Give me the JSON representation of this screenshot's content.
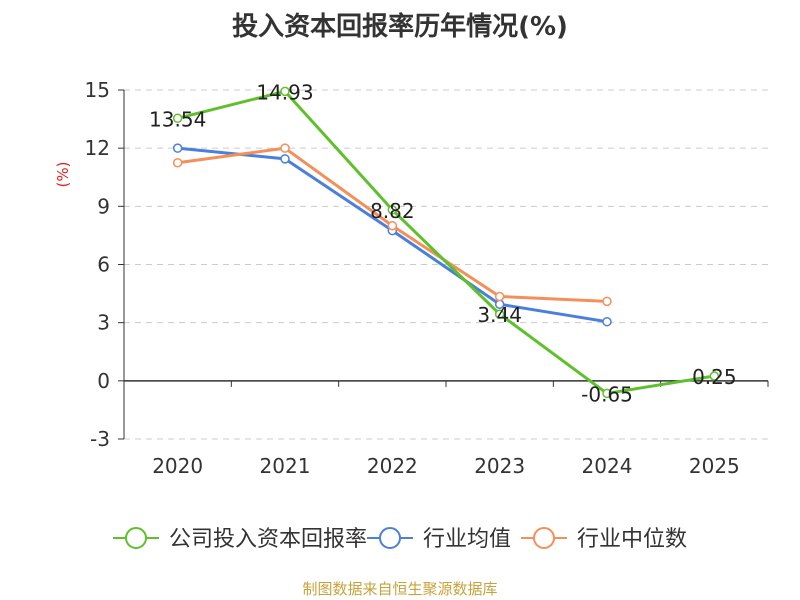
{
  "title": "投入资本回报率历年情况(%)",
  "source": "制图数据来自恒生聚源数据库",
  "chart_data": {
    "type": "line",
    "title": "投入资本回报率历年情况(%)",
    "ylabel": "(%)",
    "xlabel": "",
    "categories": [
      "2020",
      "2021",
      "2022",
      "2023",
      "2024",
      "2025"
    ],
    "ylim": [
      -3,
      15
    ],
    "yticks": [
      -3,
      0,
      3,
      6,
      9,
      12,
      15
    ],
    "grid": true,
    "legend_position": "bottom",
    "series": [
      {
        "name": "公司投入资本回报率",
        "color": "#5ec12b",
        "values": [
          13.54,
          14.93,
          8.82,
          3.44,
          -0.65,
          0.25
        ],
        "labels": [
          "13.54",
          "14.93",
          "8.82",
          "3.44",
          "-0.65",
          "0.25"
        ]
      },
      {
        "name": "行业均值",
        "color": "#4a7fdb",
        "values": [
          12.0,
          11.45,
          7.75,
          3.95,
          3.05,
          null
        ],
        "labels": []
      },
      {
        "name": "行业中位数",
        "color": "#f58f5a",
        "values": [
          11.25,
          12.0,
          8.0,
          4.35,
          4.1,
          null
        ],
        "labels": []
      }
    ]
  }
}
